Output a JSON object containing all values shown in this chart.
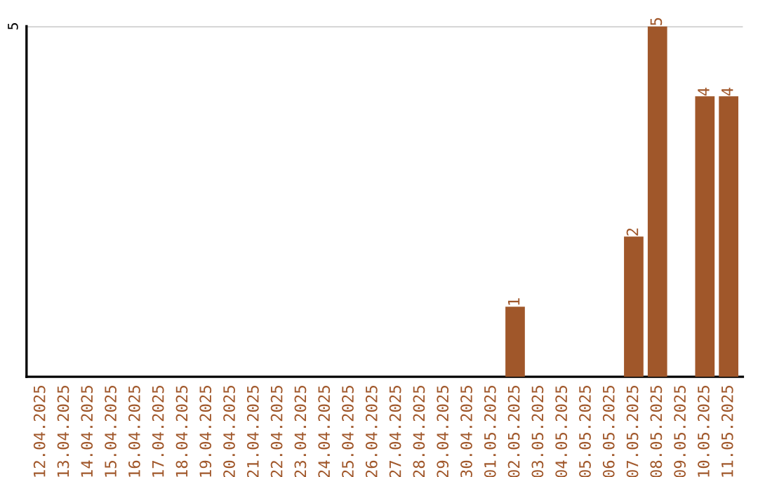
{
  "chart_data": {
    "type": "bar",
    "categories": [
      "12.04.2025",
      "13.04.2025",
      "14.04.2025",
      "15.04.2025",
      "16.04.2025",
      "17.04.2025",
      "18.04.2025",
      "19.04.2025",
      "20.04.2025",
      "21.04.2025",
      "22.04.2025",
      "23.04.2025",
      "24.04.2025",
      "25.04.2025",
      "26.04.2025",
      "27.04.2025",
      "28.04.2025",
      "29.04.2025",
      "30.04.2025",
      "01.05.2025",
      "02.05.2025",
      "03.05.2025",
      "04.05.2025",
      "05.05.2025",
      "06.05.2025",
      "07.05.2025",
      "08.05.2025",
      "09.05.2025",
      "10.05.2025",
      "11.05.2025"
    ],
    "values": [
      null,
      null,
      null,
      null,
      null,
      null,
      null,
      null,
      null,
      null,
      null,
      null,
      null,
      null,
      null,
      null,
      null,
      null,
      null,
      null,
      1,
      null,
      null,
      null,
      null,
      2,
      5,
      null,
      4,
      4
    ],
    "data_labels": true,
    "color": "#a0572a",
    "ylim": [
      0,
      5
    ],
    "yticks": [
      5
    ],
    "ref_lines": [
      {
        "axis": "y",
        "value": 5,
        "color": "#c8c8c8"
      }
    ]
  }
}
